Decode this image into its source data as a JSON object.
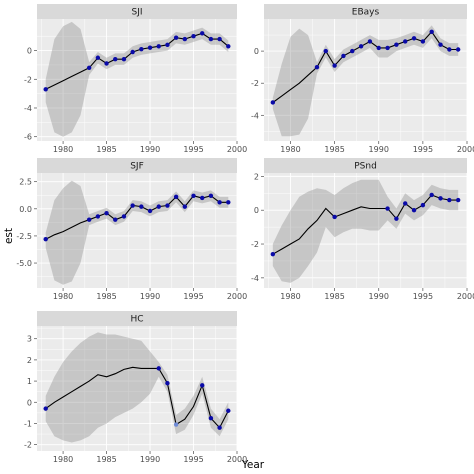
{
  "chart_data": {
    "type": "line",
    "xlabel": "Year",
    "ylabel": "est",
    "ribbon": "confidence band (shaded)",
    "colors": {
      "observed_point": "#0a0aa8",
      "estimated_point": "#6e8ad6",
      "line": "#000000",
      "ribbon": "#8c8c8c"
    },
    "panels": [
      {
        "title": "SJI",
        "xlim": [
          1977,
          2000
        ],
        "ylim": [
          -6.3,
          2.2
        ],
        "x_ticks": [
          1980,
          1985,
          1990,
          1995,
          2000
        ],
        "x_tick_labels": [
          "1980",
          "1985",
          "1990",
          "1995",
          "2000"
        ],
        "y_ticks": [
          -6,
          -4,
          -2,
          0
        ],
        "y_tick_labels": [
          "-6",
          "-4",
          "-2",
          "0"
        ],
        "series": [
          {
            "x": 1978,
            "y": -2.7,
            "lo": -3.6,
            "hi": -2.0,
            "obs": true
          },
          {
            "x": 1979,
            "y": -2.4,
            "lo": -5.7,
            "hi": 0.8,
            "obs": false
          },
          {
            "x": 1980,
            "y": -2.1,
            "lo": -6.0,
            "hi": 1.7,
            "obs": false
          },
          {
            "x": 1981,
            "y": -1.8,
            "lo": -5.7,
            "hi": 2.0,
            "obs": false
          },
          {
            "x": 1982,
            "y": -1.5,
            "lo": -4.5,
            "hi": 1.5,
            "obs": false
          },
          {
            "x": 1983,
            "y": -1.2,
            "lo": -1.7,
            "hi": -0.8,
            "obs": true
          },
          {
            "x": 1984,
            "y": -0.5,
            "lo": -0.9,
            "hi": -0.1,
            "obs": true
          },
          {
            "x": 1985,
            "y": -0.9,
            "lo": -1.3,
            "hi": -0.5,
            "obs": true
          },
          {
            "x": 1986,
            "y": -0.6,
            "lo": -1.0,
            "hi": -0.2,
            "obs": true
          },
          {
            "x": 1987,
            "y": -0.6,
            "lo": -1.0,
            "hi": -0.2,
            "obs": true
          },
          {
            "x": 1988,
            "y": -0.1,
            "lo": -0.5,
            "hi": 0.3,
            "obs": true
          },
          {
            "x": 1989,
            "y": 0.1,
            "lo": -0.3,
            "hi": 0.5,
            "obs": true
          },
          {
            "x": 1990,
            "y": 0.2,
            "lo": -0.2,
            "hi": 0.6,
            "obs": true
          },
          {
            "x": 1991,
            "y": 0.3,
            "lo": -0.1,
            "hi": 0.7,
            "obs": true
          },
          {
            "x": 1992,
            "y": 0.4,
            "lo": 0.0,
            "hi": 0.8,
            "obs": true
          },
          {
            "x": 1993,
            "y": 0.9,
            "lo": 0.5,
            "hi": 1.3,
            "obs": true
          },
          {
            "x": 1994,
            "y": 0.8,
            "lo": 0.4,
            "hi": 1.2,
            "obs": true
          },
          {
            "x": 1995,
            "y": 1.0,
            "lo": 0.6,
            "hi": 1.4,
            "obs": true
          },
          {
            "x": 1996,
            "y": 1.2,
            "lo": 0.8,
            "hi": 1.6,
            "obs": true
          },
          {
            "x": 1997,
            "y": 0.8,
            "lo": 0.4,
            "hi": 1.2,
            "obs": true
          },
          {
            "x": 1998,
            "y": 0.8,
            "lo": 0.4,
            "hi": 1.2,
            "obs": true
          },
          {
            "x": 1999,
            "y": 0.3,
            "lo": -0.1,
            "hi": 0.7,
            "obs": true
          }
        ]
      },
      {
        "title": "EBays",
        "xlim": [
          1977,
          2000
        ],
        "ylim": [
          -5.6,
          2.0
        ],
        "x_ticks": [
          1980,
          1985,
          1990,
          1995,
          2000
        ],
        "x_tick_labels": [
          "1980",
          "1985",
          "1990",
          "1995",
          "2000"
        ],
        "y_ticks": [
          -4,
          -2,
          0
        ],
        "y_tick_labels": [
          "-4",
          "-2",
          "0"
        ],
        "series": [
          {
            "x": 1978,
            "y": -3.2,
            "lo": -3.6,
            "hi": -2.9,
            "obs": true
          },
          {
            "x": 1979,
            "y": -2.8,
            "lo": -5.3,
            "hi": -0.8,
            "obs": false
          },
          {
            "x": 1980,
            "y": -2.4,
            "lo": -5.3,
            "hi": 0.9,
            "obs": false
          },
          {
            "x": 1981,
            "y": -2.0,
            "lo": -5.2,
            "hi": 1.4,
            "obs": false
          },
          {
            "x": 1982,
            "y": -1.5,
            "lo": -4.2,
            "hi": 1.0,
            "obs": false
          },
          {
            "x": 1983,
            "y": -1.0,
            "lo": -1.4,
            "hi": -0.7,
            "obs": true
          },
          {
            "x": 1984,
            "y": 0.0,
            "lo": -0.4,
            "hi": 0.4,
            "obs": true
          },
          {
            "x": 1985,
            "y": -0.9,
            "lo": -1.3,
            "hi": -0.5,
            "obs": true
          },
          {
            "x": 1986,
            "y": -0.3,
            "lo": -0.7,
            "hi": 0.1,
            "obs": true
          },
          {
            "x": 1987,
            "y": 0.0,
            "lo": -0.4,
            "hi": 0.4,
            "obs": true
          },
          {
            "x": 1988,
            "y": 0.3,
            "lo": -0.1,
            "hi": 0.7,
            "obs": true
          },
          {
            "x": 1989,
            "y": 0.6,
            "lo": 0.2,
            "hi": 1.0,
            "obs": true
          },
          {
            "x": 1990,
            "y": 0.2,
            "lo": -0.4,
            "hi": 0.7,
            "obs": true
          },
          {
            "x": 1991,
            "y": 0.2,
            "lo": -0.4,
            "hi": 0.7,
            "obs": true
          },
          {
            "x": 1992,
            "y": 0.4,
            "lo": 0.0,
            "hi": 0.8,
            "obs": true
          },
          {
            "x": 1993,
            "y": 0.6,
            "lo": 0.2,
            "hi": 1.0,
            "obs": true
          },
          {
            "x": 1994,
            "y": 0.8,
            "lo": 0.4,
            "hi": 1.2,
            "obs": true
          },
          {
            "x": 1995,
            "y": 0.6,
            "lo": 0.2,
            "hi": 1.0,
            "obs": true
          },
          {
            "x": 1996,
            "y": 1.2,
            "lo": 0.8,
            "hi": 1.6,
            "obs": true
          },
          {
            "x": 1997,
            "y": 0.4,
            "lo": 0.0,
            "hi": 0.8,
            "obs": true
          },
          {
            "x": 1998,
            "y": 0.1,
            "lo": -0.3,
            "hi": 0.5,
            "obs": true
          },
          {
            "x": 1999,
            "y": 0.1,
            "lo": -0.3,
            "hi": 0.5,
            "obs": true
          }
        ]
      },
      {
        "title": "SJF",
        "xlim": [
          1977,
          2000
        ],
        "ylim": [
          -7.3,
          3.3
        ],
        "x_ticks": [
          1980,
          1985,
          1990,
          1995,
          2000
        ],
        "x_tick_labels": [
          "1980",
          "1985",
          "1990",
          "1995",
          "2000"
        ],
        "y_ticks": [
          -5,
          -2.5,
          0,
          2.5
        ],
        "y_tick_labels": [
          "-5.0",
          "-2.5",
          "0.0",
          "2.5"
        ],
        "series": [
          {
            "x": 1978,
            "y": -2.8,
            "lo": -3.6,
            "hi": -2.2,
            "obs": true
          },
          {
            "x": 1979,
            "y": -2.4,
            "lo": -6.6,
            "hi": 0.8,
            "obs": false
          },
          {
            "x": 1980,
            "y": -2.1,
            "lo": -7.0,
            "hi": 1.9,
            "obs": false
          },
          {
            "x": 1981,
            "y": -1.7,
            "lo": -6.7,
            "hi": 2.6,
            "obs": false
          },
          {
            "x": 1982,
            "y": -1.3,
            "lo": -5.0,
            "hi": 2.1,
            "obs": false
          },
          {
            "x": 1983,
            "y": -1.0,
            "lo": -1.5,
            "hi": -0.5,
            "obs": true
          },
          {
            "x": 1984,
            "y": -0.7,
            "lo": -1.2,
            "hi": -0.2,
            "obs": true
          },
          {
            "x": 1985,
            "y": -0.4,
            "lo": -0.9,
            "hi": 0.1,
            "obs": true
          },
          {
            "x": 1986,
            "y": -1.0,
            "lo": -1.5,
            "hi": -0.5,
            "obs": true
          },
          {
            "x": 1987,
            "y": -0.7,
            "lo": -1.2,
            "hi": -0.2,
            "obs": true
          },
          {
            "x": 1988,
            "y": 0.3,
            "lo": -0.2,
            "hi": 0.8,
            "obs": true
          },
          {
            "x": 1989,
            "y": 0.2,
            "lo": -0.3,
            "hi": 0.7,
            "obs": true
          },
          {
            "x": 1990,
            "y": -0.2,
            "lo": -0.7,
            "hi": 0.3,
            "obs": true
          },
          {
            "x": 1991,
            "y": 0.2,
            "lo": -0.3,
            "hi": 0.7,
            "obs": true
          },
          {
            "x": 1992,
            "y": 0.3,
            "lo": -0.2,
            "hi": 0.8,
            "obs": true
          },
          {
            "x": 1993,
            "y": 1.1,
            "lo": 0.6,
            "hi": 1.6,
            "obs": true
          },
          {
            "x": 1994,
            "y": 0.2,
            "lo": -0.3,
            "hi": 0.7,
            "obs": true
          },
          {
            "x": 1995,
            "y": 1.2,
            "lo": 0.7,
            "hi": 1.7,
            "obs": true
          },
          {
            "x": 1996,
            "y": 1.0,
            "lo": 0.5,
            "hi": 1.5,
            "obs": true
          },
          {
            "x": 1997,
            "y": 1.2,
            "lo": 0.7,
            "hi": 1.7,
            "obs": true
          },
          {
            "x": 1998,
            "y": 0.6,
            "lo": 0.1,
            "hi": 1.1,
            "obs": true
          },
          {
            "x": 1999,
            "y": 0.6,
            "lo": 0.1,
            "hi": 1.1,
            "obs": true
          }
        ]
      },
      {
        "title": "PSnd",
        "xlim": [
          1977,
          2000
        ],
        "ylim": [
          -4.6,
          2.2
        ],
        "x_ticks": [
          1980,
          1985,
          1990,
          1995,
          2000
        ],
        "x_tick_labels": [
          "1980",
          "1985",
          "1990",
          "1995",
          "2000"
        ],
        "y_ticks": [
          -4,
          -2,
          0,
          2
        ],
        "y_tick_labels": [
          "-4",
          "-2",
          "0",
          "2"
        ],
        "series": [
          {
            "x": 1978,
            "y": -2.6,
            "lo": -3.3,
            "hi": -2.0,
            "obs": true
          },
          {
            "x": 1979,
            "y": -2.3,
            "lo": -4.2,
            "hi": -0.9,
            "obs": false
          },
          {
            "x": 1980,
            "y": -2.0,
            "lo": -4.3,
            "hi": 0.0,
            "obs": false
          },
          {
            "x": 1981,
            "y": -1.7,
            "lo": -4.0,
            "hi": 0.8,
            "obs": false
          },
          {
            "x": 1982,
            "y": -1.1,
            "lo": -3.3,
            "hi": 1.1,
            "obs": false
          },
          {
            "x": 1983,
            "y": -0.6,
            "lo": -2.5,
            "hi": 1.3,
            "obs": false
          },
          {
            "x": 1984,
            "y": 0.1,
            "lo": -1.0,
            "hi": 1.2,
            "obs": false
          },
          {
            "x": 1985,
            "y": -0.4,
            "lo": -1.6,
            "hi": 0.9,
            "obs": true
          },
          {
            "x": 1986,
            "y": -0.2,
            "lo": -1.3,
            "hi": 1.3,
            "obs": false
          },
          {
            "x": 1987,
            "y": 0.0,
            "lo": -1.1,
            "hi": 1.6,
            "obs": false
          },
          {
            "x": 1988,
            "y": 0.2,
            "lo": -1.1,
            "hi": 1.8,
            "obs": false
          },
          {
            "x": 1989,
            "y": 0.1,
            "lo": -1.2,
            "hi": 1.8,
            "obs": false
          },
          {
            "x": 1990,
            "y": 0.1,
            "lo": -1.2,
            "hi": 1.8,
            "obs": false
          },
          {
            "x": 1991,
            "y": 0.1,
            "lo": -0.6,
            "hi": 0.8,
            "obs": true
          },
          {
            "x": 1992,
            "y": -0.5,
            "lo": -1.1,
            "hi": 0.1,
            "obs": true
          },
          {
            "x": 1993,
            "y": 0.4,
            "lo": -0.2,
            "hi": 1.0,
            "obs": true
          },
          {
            "x": 1994,
            "y": 0.0,
            "lo": -0.6,
            "hi": 0.6,
            "obs": true
          },
          {
            "x": 1995,
            "y": 0.3,
            "lo": -0.3,
            "hi": 0.9,
            "obs": true
          },
          {
            "x": 1996,
            "y": 0.9,
            "lo": 0.3,
            "hi": 1.5,
            "obs": true
          },
          {
            "x": 1997,
            "y": 0.7,
            "lo": 0.1,
            "hi": 1.3,
            "obs": true
          },
          {
            "x": 1998,
            "y": 0.6,
            "lo": 0.0,
            "hi": 1.2,
            "obs": true
          },
          {
            "x": 1999,
            "y": 0.6,
            "lo": 0.0,
            "hi": 1.2,
            "obs": true
          }
        ]
      },
      {
        "title": "HC",
        "xlim": [
          1977,
          2000
        ],
        "ylim": [
          -2.3,
          3.6
        ],
        "x_ticks": [
          1980,
          1985,
          1990,
          1995,
          2000
        ],
        "x_tick_labels": [
          "1980",
          "1985",
          "1990",
          "1995",
          "2000"
        ],
        "y_ticks": [
          -2,
          -1,
          0,
          1,
          2,
          3
        ],
        "y_tick_labels": [
          "-2",
          "-1",
          "0",
          "1",
          "2",
          "3"
        ],
        "series": [
          {
            "x": 1978,
            "y": -0.3,
            "lo": -0.9,
            "hi": 0.3,
            "obs": true
          },
          {
            "x": 1979,
            "y": 0.0,
            "lo": -1.6,
            "hi": 1.2,
            "obs": false
          },
          {
            "x": 1980,
            "y": 0.25,
            "lo": -1.8,
            "hi": 1.9,
            "obs": false
          },
          {
            "x": 1981,
            "y": 0.5,
            "lo": -1.9,
            "hi": 2.4,
            "obs": false
          },
          {
            "x": 1982,
            "y": 0.75,
            "lo": -1.8,
            "hi": 2.8,
            "obs": false
          },
          {
            "x": 1983,
            "y": 1.0,
            "lo": -1.6,
            "hi": 3.1,
            "obs": false
          },
          {
            "x": 1984,
            "y": 1.3,
            "lo": -1.2,
            "hi": 3.3,
            "obs": false
          },
          {
            "x": 1985,
            "y": 1.2,
            "lo": -1.0,
            "hi": 3.2,
            "obs": false
          },
          {
            "x": 1986,
            "y": 1.35,
            "lo": -0.7,
            "hi": 3.2,
            "obs": false
          },
          {
            "x": 1987,
            "y": 1.55,
            "lo": -0.5,
            "hi": 3.1,
            "obs": false
          },
          {
            "x": 1988,
            "y": 1.65,
            "lo": -0.3,
            "hi": 3.0,
            "obs": false
          },
          {
            "x": 1989,
            "y": 1.6,
            "lo": 0.0,
            "hi": 2.9,
            "obs": false
          },
          {
            "x": 1990,
            "y": 1.6,
            "lo": 0.4,
            "hi": 2.4,
            "obs": false
          },
          {
            "x": 1991,
            "y": 1.6,
            "lo": 1.2,
            "hi": 1.9,
            "obs": true
          },
          {
            "x": 1992,
            "y": 0.9,
            "lo": 0.5,
            "hi": 1.3,
            "obs": true
          },
          {
            "x": 1993,
            "y": -1.05,
            "lo": -1.5,
            "hi": -0.6,
            "obs": false
          },
          {
            "x": 1994,
            "y": -0.8,
            "lo": -1.3,
            "hi": -0.3,
            "obs": false
          },
          {
            "x": 1995,
            "y": -0.2,
            "lo": -0.6,
            "hi": 0.3,
            "obs": false
          },
          {
            "x": 1996,
            "y": 0.8,
            "lo": 0.4,
            "hi": 1.2,
            "obs": true
          },
          {
            "x": 1997,
            "y": -0.75,
            "lo": -1.2,
            "hi": -0.3,
            "obs": true
          },
          {
            "x": 1998,
            "y": -1.2,
            "lo": -1.6,
            "hi": -0.8,
            "obs": true
          },
          {
            "x": 1999,
            "y": -0.4,
            "lo": -0.8,
            "hi": 0.0,
            "obs": true
          }
        ]
      }
    ]
  }
}
